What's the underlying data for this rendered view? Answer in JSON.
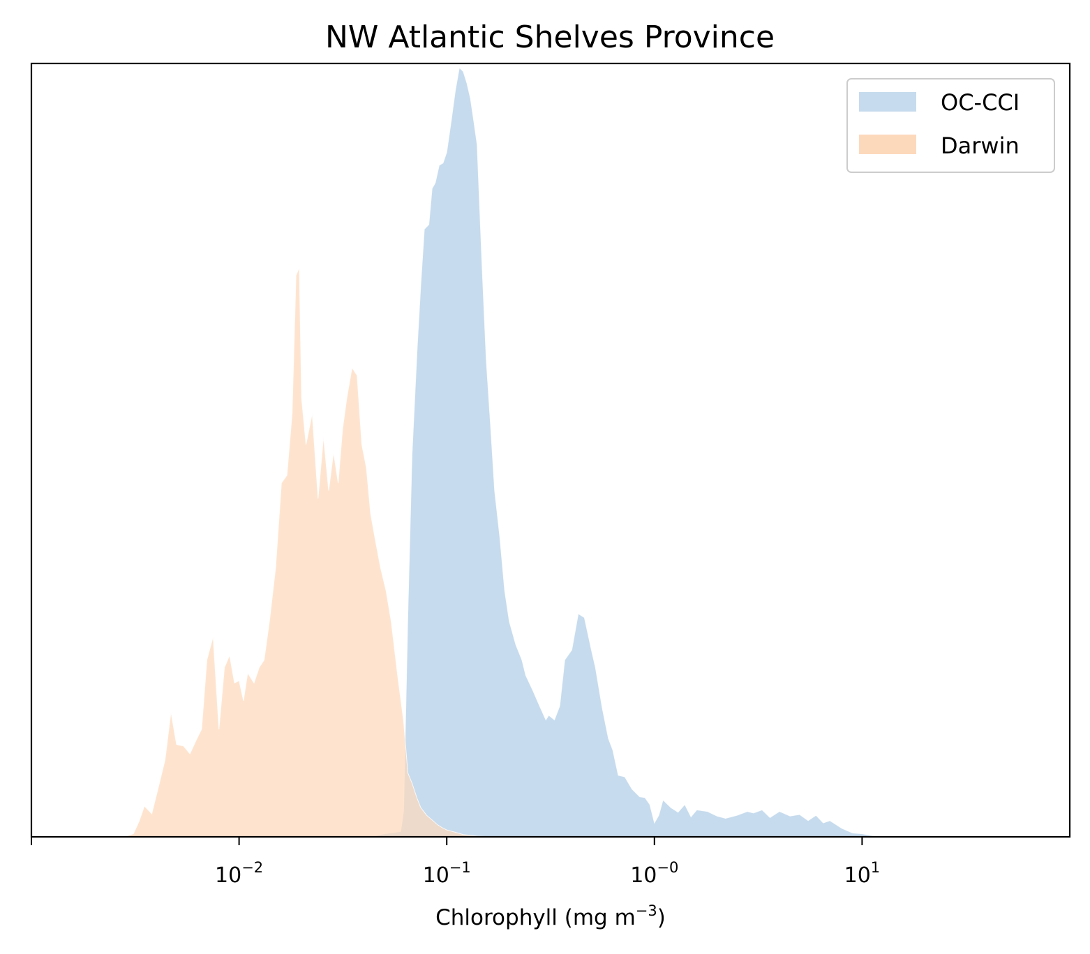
{
  "chart_data": {
    "type": "area",
    "title": "NW Atlantic Shelves Province",
    "xlabel": "Chlorophyll  (mg m",
    "xlabel_sup": "−3",
    "xlabel_suffix": ")",
    "ylabel": "",
    "x_scale": "log",
    "xlim": [
      0.001,
      100
    ],
    "ylim": [
      0,
      1
    ],
    "y_ticks_visible": false,
    "grid": false,
    "legend_position": "top-right",
    "x_ticks": [
      {
        "value": 0.01,
        "base": "10",
        "exp": "−2"
      },
      {
        "value": 0.1,
        "base": "10",
        "exp": "−1"
      },
      {
        "value": 1,
        "base": "10",
        "exp": "−0"
      },
      {
        "value": 10,
        "base": "10",
        "exp": "1"
      }
    ],
    "series": [
      {
        "name": "OC-CCI",
        "color": "#c6dbed",
        "x": [
          0.043,
          0.05,
          0.06,
          0.062,
          0.065,
          0.068,
          0.072,
          0.075,
          0.078,
          0.082,
          0.085,
          0.088,
          0.092,
          0.096,
          0.1,
          0.105,
          0.11,
          0.115,
          0.12,
          0.125,
          0.13,
          0.135,
          0.14,
          0.148,
          0.155,
          0.163,
          0.17,
          0.18,
          0.19,
          0.2,
          0.215,
          0.23,
          0.24,
          0.26,
          0.28,
          0.3,
          0.31,
          0.33,
          0.35,
          0.37,
          0.4,
          0.43,
          0.46,
          0.5,
          0.52,
          0.56,
          0.6,
          0.63,
          0.67,
          0.72,
          0.78,
          0.85,
          0.9,
          0.95,
          1.0,
          1.05,
          1.1,
          1.2,
          1.3,
          1.4,
          1.5,
          1.6,
          1.8,
          2.0,
          2.2,
          2.5,
          2.8,
          3.0,
          3.3,
          3.6,
          4.0,
          4.5,
          5.0,
          5.5,
          6.0,
          6.5,
          7.0,
          8.0,
          9.0,
          10.0,
          12.0
        ],
        "y": [
          0.0,
          0.004,
          0.007,
          0.034,
          0.29,
          0.496,
          0.633,
          0.718,
          0.79,
          0.796,
          0.843,
          0.85,
          0.873,
          0.876,
          0.89,
          0.93,
          0.97,
          1.0,
          0.995,
          0.98,
          0.96,
          0.93,
          0.9,
          0.74,
          0.62,
          0.53,
          0.45,
          0.39,
          0.32,
          0.28,
          0.25,
          0.23,
          0.21,
          0.19,
          0.17,
          0.152,
          0.158,
          0.152,
          0.17,
          0.23,
          0.243,
          0.29,
          0.285,
          0.24,
          0.22,
          0.168,
          0.128,
          0.113,
          0.08,
          0.078,
          0.062,
          0.052,
          0.051,
          0.042,
          0.018,
          0.028,
          0.048,
          0.038,
          0.032,
          0.042,
          0.026,
          0.035,
          0.033,
          0.027,
          0.024,
          0.028,
          0.033,
          0.031,
          0.035,
          0.025,
          0.033,
          0.027,
          0.029,
          0.021,
          0.028,
          0.018,
          0.021,
          0.011,
          0.005,
          0.004,
          0.0
        ]
      },
      {
        "name": "Darwin",
        "color": "#fdd9bc",
        "x": [
          0.0028,
          0.0031,
          0.0033,
          0.0035,
          0.0038,
          0.0041,
          0.0044,
          0.0047,
          0.005,
          0.0054,
          0.0058,
          0.0062,
          0.0066,
          0.007,
          0.0075,
          0.008,
          0.0085,
          0.009,
          0.0095,
          0.01,
          0.0105,
          0.011,
          0.0118,
          0.0125,
          0.0132,
          0.014,
          0.015,
          0.016,
          0.017,
          0.018,
          0.0188,
          0.0195,
          0.02,
          0.021,
          0.0225,
          0.024,
          0.0255,
          0.027,
          0.0285,
          0.03,
          0.0315,
          0.033,
          0.035,
          0.037,
          0.039,
          0.041,
          0.043,
          0.045,
          0.048,
          0.051,
          0.054,
          0.058,
          0.062,
          0.065,
          0.068,
          0.072,
          0.075,
          0.08,
          0.085,
          0.09,
          0.095,
          0.1,
          0.11,
          0.12,
          0.14,
          0.16
        ],
        "y": [
          0.0,
          0.004,
          0.02,
          0.04,
          0.03,
          0.066,
          0.1,
          0.162,
          0.12,
          0.118,
          0.108,
          0.125,
          0.14,
          0.23,
          0.26,
          0.14,
          0.22,
          0.236,
          0.2,
          0.203,
          0.177,
          0.213,
          0.2,
          0.22,
          0.23,
          0.28,
          0.35,
          0.46,
          0.47,
          0.55,
          0.73,
          0.74,
          0.57,
          0.51,
          0.55,
          0.44,
          0.52,
          0.45,
          0.5,
          0.46,
          0.53,
          0.57,
          0.61,
          0.6,
          0.51,
          0.48,
          0.42,
          0.39,
          0.35,
          0.32,
          0.28,
          0.21,
          0.15,
          0.083,
          0.07,
          0.05,
          0.038,
          0.028,
          0.022,
          0.016,
          0.012,
          0.009,
          0.006,
          0.003,
          0.001,
          0.0
        ]
      }
    ]
  }
}
